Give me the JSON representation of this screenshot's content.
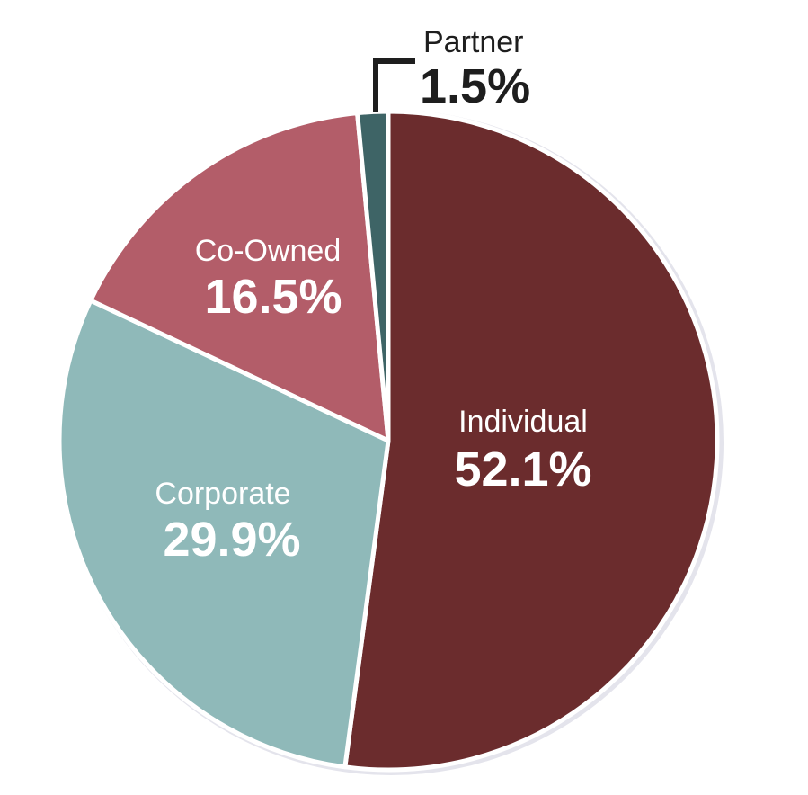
{
  "chart_data": {
    "type": "pie",
    "title": "",
    "slices": [
      {
        "label": "Individual",
        "value": 52.1,
        "display": "52.1%",
        "color": "#6b2c2d",
        "text_color": "#ffffff"
      },
      {
        "label": "Corporate",
        "value": 29.9,
        "display": "29.9%",
        "color": "#8fb9b9",
        "text_color": "#ffffff"
      },
      {
        "label": "Co-Owned",
        "value": 16.5,
        "display": "16.5%",
        "color": "#b35d69",
        "text_color": "#ffffff"
      },
      {
        "label": "Partner",
        "value": 1.5,
        "display": "1.5%",
        "color": "#3e6466",
        "text_color": "#1e1e1e"
      }
    ],
    "legend": "none",
    "start_angle": "12 o'clock",
    "direction": "clockwise",
    "colors": {
      "border": "#ffffff",
      "outline_shadow": "#e4e4ec",
      "callout": "#1e1e1e"
    }
  }
}
